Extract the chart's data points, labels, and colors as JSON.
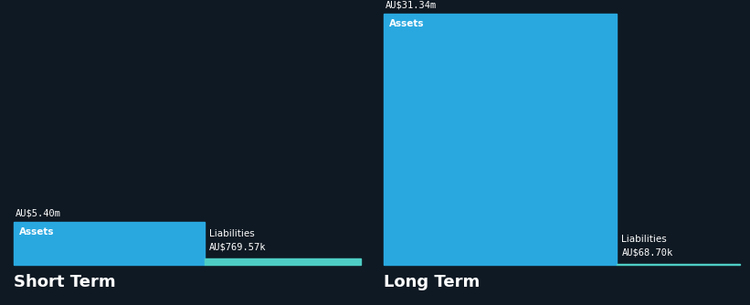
{
  "bg_color": "#0f1923",
  "short_term": {
    "assets_value": 5.4,
    "assets_label": "Assets",
    "assets_amount_label": "AU$5.40m",
    "liabilities_value": 0.76957,
    "liabilities_label": "Liabilities",
    "liabilities_amount_label": "AU$769.57k",
    "assets_color": "#29a8e0",
    "liabilities_color": "#4ecdc4",
    "section_label": "Short Term"
  },
  "long_term": {
    "assets_value": 31.34,
    "assets_label": "Assets",
    "assets_amount_label": "AU$31.34m",
    "liabilities_value": 0.0687,
    "liabilities_label": "Liabilities",
    "liabilities_amount_label": "AU$68.70k",
    "assets_color": "#29a8e0",
    "liabilities_color": "#4ecdc4",
    "section_label": "Long Term"
  },
  "text_color": "#ffffff",
  "label_fontsize": 7.5,
  "section_fontsize": 13,
  "value_fontsize": 7.5
}
